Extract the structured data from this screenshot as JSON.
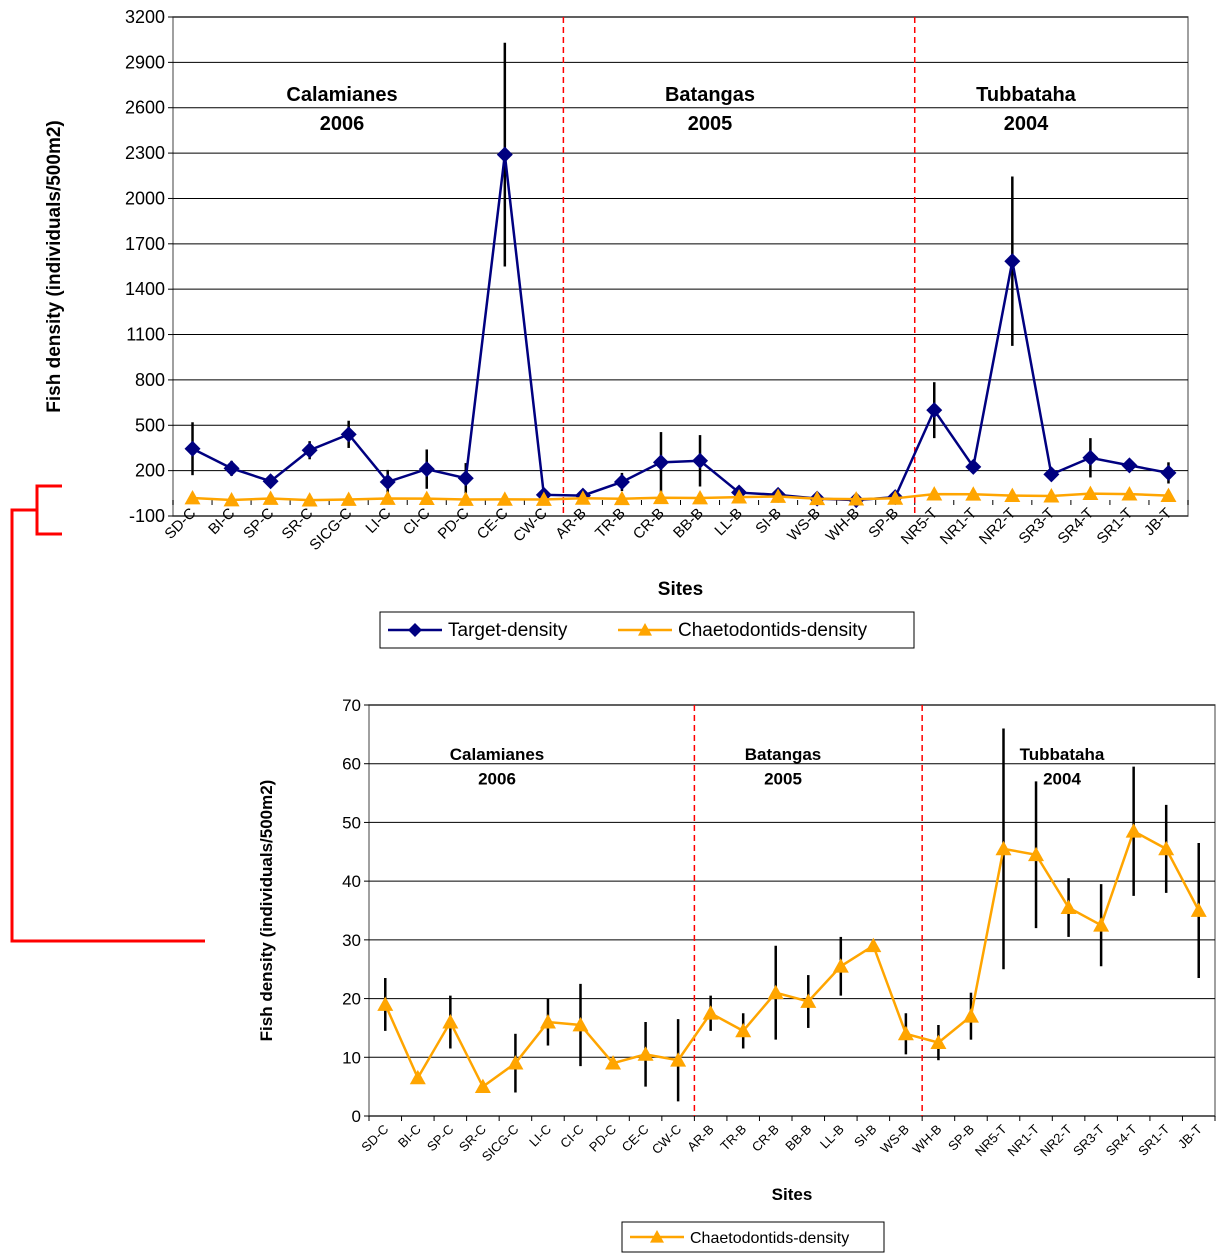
{
  "chart_data": [
    {
      "type": "line",
      "ylabel": "Fish density (individuals/500m2)",
      "xlabel": "Sites",
      "ylim": [
        -100,
        3200
      ],
      "yticks": [
        -100,
        200,
        500,
        800,
        1100,
        1400,
        1700,
        2000,
        2300,
        2600,
        2900,
        3200
      ],
      "grid": "horizontal",
      "legend_placement": "bottom",
      "categories": [
        "SD-C",
        "BI-C",
        "SP-C",
        "SR-C",
        "SICG-C",
        "LI-C",
        "CI-C",
        "PD-C",
        "CE-C",
        "CW-C",
        "AR-B",
        "TR-B",
        "CR-B",
        "BB-B",
        "LL-B",
        "SI-B",
        "WS-B",
        "WH-B",
        "SP-B",
        "NR5-T",
        "NR1-T",
        "NR2-T",
        "SR3-T",
        "SR4-T",
        "SR1-T",
        "JB-T"
      ],
      "regions": [
        {
          "name": "Calamianes",
          "year": "2006"
        },
        {
          "name": "Batangas",
          "year": "2005"
        },
        {
          "name": "Tubbataha",
          "year": "2004"
        }
      ],
      "series": [
        {
          "name": "Target-density",
          "color": "#000080",
          "marker": "diamond",
          "values": [
            345,
            215,
            130,
            335,
            440,
            125,
            210,
            150,
            2290,
            40,
            35,
            125,
            255,
            265,
            55,
            40,
            15,
            5,
            25,
            600,
            225,
            1585,
            175,
            285,
            235,
            185
          ],
          "error": [
            175,
            50,
            30,
            60,
            90,
            80,
            130,
            100,
            740,
            10,
            10,
            60,
            200,
            170,
            20,
            15,
            5,
            5,
            15,
            185,
            40,
            560,
            30,
            130,
            35,
            70
          ]
        },
        {
          "name": "Chaetodontids-density",
          "color": "#FFA500",
          "marker": "triangle",
          "values": [
            19,
            6,
            16,
            5,
            9,
            16,
            15,
            9,
            10,
            9,
            17,
            14,
            21,
            19,
            25,
            29,
            14,
            12,
            17,
            45,
            44,
            35,
            32,
            48,
            45,
            35
          ],
          "error": [
            0,
            0,
            0,
            0,
            0,
            0,
            0,
            0,
            0,
            0,
            0,
            0,
            0,
            0,
            0,
            0,
            0,
            0,
            0,
            0,
            0,
            0,
            0,
            0,
            0,
            0
          ]
        }
      ]
    },
    {
      "type": "line",
      "ylabel": "Fish density (individuals/500m2)",
      "xlabel": "Sites",
      "ylim": [
        0,
        70
      ],
      "yticks": [
        0,
        10,
        20,
        30,
        40,
        50,
        60,
        70
      ],
      "grid": "horizontal",
      "legend_placement": "bottom",
      "categories": [
        "SD-C",
        "BI-C",
        "SP-C",
        "SR-C",
        "SICG-C",
        "LI-C",
        "CI-C",
        "PD-C",
        "CE-C",
        "CW-C",
        "AR-B",
        "TR-B",
        "CR-B",
        "BB-B",
        "LL-B",
        "SI-B",
        "WS-B",
        "WH-B",
        "SP-B",
        "NR5-T",
        "NR1-T",
        "NR2-T",
        "SR3-T",
        "SR4-T",
        "SR1-T",
        "JB-T"
      ],
      "regions": [
        {
          "name": "Calamianes",
          "year": "2006"
        },
        {
          "name": "Batangas",
          "year": "2005"
        },
        {
          "name": "Tubbataha",
          "year": "2004"
        }
      ],
      "series": [
        {
          "name": "Chaetodontids-density",
          "color": "#FFA500",
          "marker": "triangle",
          "values": [
            19,
            6.5,
            16,
            5,
            9,
            16,
            15.5,
            9,
            10.5,
            9.5,
            17.5,
            14.5,
            21,
            19.5,
            25.5,
            29,
            14,
            12.5,
            17,
            45.5,
            44.5,
            35.5,
            32.5,
            48.5,
            45.5,
            35
          ],
          "error": [
            4.5,
            0,
            4.5,
            0,
            5,
            4,
            7,
            1,
            5.5,
            7,
            3,
            3,
            8,
            4.5,
            5,
            0,
            3.5,
            3,
            4,
            20.5,
            12.5,
            5,
            7,
            11,
            7.5,
            11.5
          ]
        }
      ]
    }
  ],
  "bracket_color": "#FF0000",
  "divider_color": "#FF0000"
}
